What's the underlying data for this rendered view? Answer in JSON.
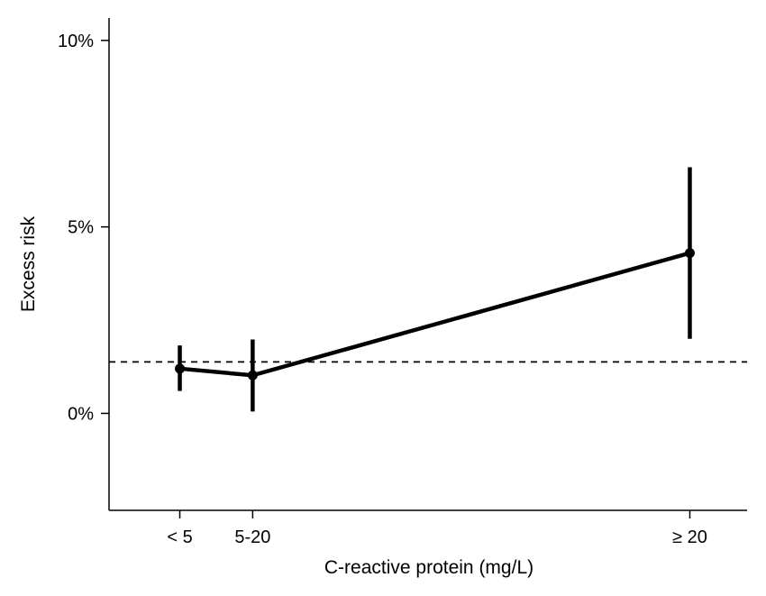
{
  "chart_data": {
    "type": "line",
    "title": "",
    "xlabel": "C-reactive protein (mg/L)",
    "ylabel": "Excess risk",
    "categories": [
      "< 5",
      "5-20",
      "≥ 20"
    ],
    "x": [
      3,
      10,
      52
    ],
    "xlim": [
      -3.8,
      57.5
    ],
    "ylim": [
      -2.6,
      10.6
    ],
    "yticks": [
      0,
      5,
      10
    ],
    "ytick_labels": [
      "0%",
      "5%",
      "10%"
    ],
    "series": [
      {
        "values": [
          1.2,
          1.02,
          4.3
        ],
        "ci_low": [
          0.6,
          0.05,
          2.0
        ],
        "ci_high": [
          1.82,
          1.98,
          6.6
        ]
      }
    ],
    "reference_line": {
      "y": 1.38,
      "style": "dashed"
    },
    "grid": false,
    "legend": "none",
    "colors": {
      "line": "#000000",
      "reference": "#000000"
    }
  }
}
